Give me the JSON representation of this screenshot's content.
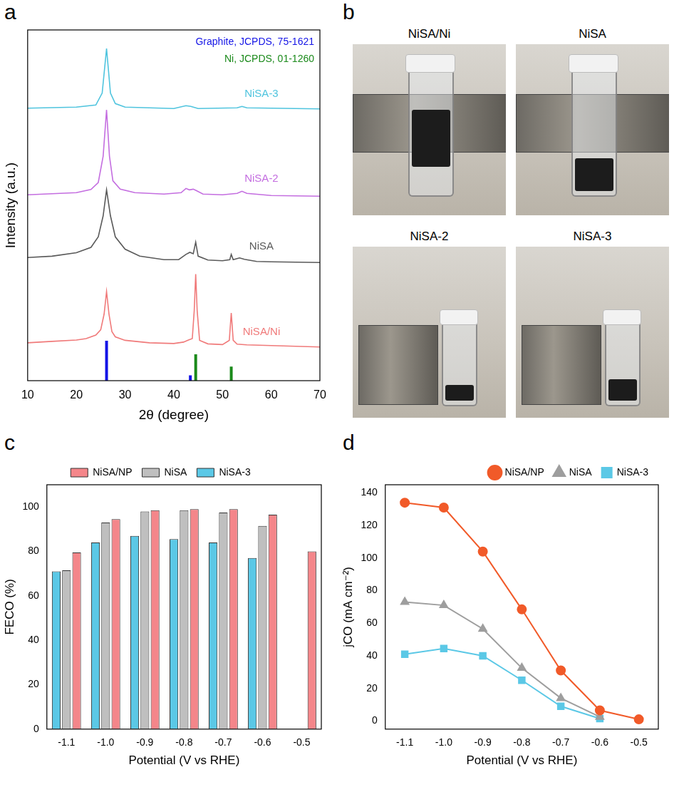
{
  "chart_data": [
    {
      "panel_label": "a",
      "type": "line",
      "x_label": "2θ (degree)",
      "y_label": "Intensity (a.u.)",
      "xlim": [
        10,
        70
      ],
      "xticks": [
        10,
        20,
        30,
        40,
        50,
        60,
        70
      ],
      "ylim": [
        0,
        100
      ],
      "tick_labels": "x",
      "grid": false,
      "legend": "upper right",
      "series": [
        {
          "name": "NiSA-3",
          "color": "#4fc4de",
          "x": [
            10,
            20,
            24,
            25.3,
            26.2,
            27,
            28,
            30,
            40,
            42.5,
            43.5,
            45,
            53,
            54,
            55,
            70
          ],
          "values": [
            77.7,
            78,
            78.6,
            82,
            94.7,
            82,
            79,
            78,
            77.6,
            78.4,
            78.2,
            77.6,
            77.8,
            78.2,
            77.8,
            77.5
          ]
        },
        {
          "name": "NiSA-2",
          "color": "#c46ee0",
          "x": [
            10,
            20,
            23,
            24.5,
            25.5,
            26.2,
            26.8,
            27.5,
            29,
            32,
            38,
            41.5,
            42.5,
            43.2,
            44,
            44.6,
            46,
            50,
            53,
            54,
            55,
            60,
            70
          ],
          "values": [
            53,
            53.6,
            54.5,
            56.5,
            64,
            77.2,
            64,
            57,
            54.6,
            53.6,
            53.2,
            53.6,
            54.8,
            54.4,
            54.6,
            54.2,
            53.2,
            53,
            53.4,
            54,
            53.4,
            52.8,
            52.6
          ]
        },
        {
          "name": "NiSA",
          "color": "#5a5a5a",
          "x": [
            10,
            15,
            20,
            23,
            24.5,
            25.5,
            26.2,
            27,
            28,
            30,
            33,
            38,
            41,
            42.5,
            43.3,
            44,
            44.5,
            45,
            47,
            50,
            51.5,
            51.8,
            52.2,
            53.5,
            54.5,
            57,
            60,
            70
          ],
          "values": [
            35.1,
            35.5,
            36.5,
            38,
            41,
            47,
            54.4,
            47,
            41,
            37.5,
            35.5,
            34.5,
            34.5,
            36,
            36.6,
            36.2,
            39.5,
            35.5,
            34.4,
            34.2,
            34.5,
            36,
            34.5,
            35,
            34.6,
            34,
            33.9,
            33.7
          ]
        },
        {
          "name": "NiSA/Ni",
          "color": "#f07a7a",
          "x": [
            10,
            15,
            20,
            22,
            24,
            25,
            25.7,
            26.2,
            26.7,
            27.3,
            28,
            30,
            35,
            40,
            42,
            43,
            43.8,
            44.2,
            44.5,
            44.8,
            45.3,
            47,
            50,
            51.4,
            51.8,
            52.2,
            53,
            55,
            60,
            65,
            70
          ],
          "values": [
            10.8,
            11.2,
            11.6,
            12,
            13,
            14.5,
            19,
            25.4,
            19,
            14,
            12.5,
            11.5,
            10.8,
            10.6,
            11,
            11.6,
            12,
            20,
            30.4,
            20,
            11.5,
            10.5,
            10.3,
            11.5,
            19.3,
            11.5,
            10.4,
            10.2,
            10,
            9.8,
            9.6
          ]
        }
      ],
      "reference_lines": [
        {
          "name": "Graphite, JCPDS, 75-1621",
          "color": "#1414e6",
          "x": [
            26.2,
            43.4
          ],
          "values": [
            11.4,
            1.5
          ]
        },
        {
          "name": "Ni, JCPDS, 01-1260",
          "color": "#1b8a1b",
          "x": [
            44.5,
            51.8
          ],
          "values": [
            7.5,
            4
          ]
        }
      ]
    },
    {
      "panel_label": "c",
      "type": "bar",
      "x_label": "Potential (V vs RHE)",
      "y_label": "FECO (%)",
      "categories": [
        "-1.1",
        "-1.0",
        "-0.9",
        "-0.8",
        "-0.7",
        "-0.6",
        "-0.5"
      ],
      "ylim": [
        0,
        110
      ],
      "yticks": [
        0,
        20,
        40,
        60,
        80,
        100
      ],
      "grid": false,
      "legend": "top",
      "series": [
        {
          "name": "NiSA-3",
          "color": "#5bc8e6",
          "values": [
            71,
            84,
            87,
            85.5,
            84,
            77,
            null
          ]
        },
        {
          "name": "NiSA",
          "color": "#bfbfbf",
          "values": [
            71.5,
            93,
            98,
            98.5,
            97.5,
            91.5,
            null
          ]
        },
        {
          "name": "NiSA/NP",
          "color": "#f4868a",
          "values": [
            79.5,
            94.5,
            98.5,
            99,
            99,
            96.5,
            80
          ]
        }
      ]
    },
    {
      "panel_label": "d",
      "type": "line",
      "x_label": "Potential (V vs RHE)",
      "y_label": "jCO (mA cm⁻²)",
      "categories": [
        "-1.1",
        "-1.0",
        "-0.9",
        "-0.8",
        "-0.7",
        "-0.6",
        "-0.5"
      ],
      "ylim": [
        -5,
        145
      ],
      "yticks": [
        0,
        20,
        40,
        60,
        80,
        100,
        120,
        140
      ],
      "grid": false,
      "legend": "top right",
      "series": [
        {
          "name": "NiSA/NP",
          "color": "#f15a29",
          "marker": "circle",
          "values": [
            134,
            131,
            104,
            68.5,
            31,
            6.5,
            1
          ]
        },
        {
          "name": "NiSA",
          "color": "#9e9e9e",
          "marker": "triangle",
          "values": [
            73,
            71,
            56.5,
            32.5,
            14,
            2.5,
            null
          ]
        },
        {
          "name": "NiSA-3",
          "color": "#5bc8e6",
          "marker": "square",
          "values": [
            41,
            44.5,
            40,
            25,
            9,
            1.5,
            null
          ]
        }
      ]
    }
  ],
  "photo_panel": {
    "panel_label": "b",
    "photos": [
      "NiSA/Ni",
      "NiSA",
      "NiSA-2",
      "NiSA-3"
    ]
  }
}
